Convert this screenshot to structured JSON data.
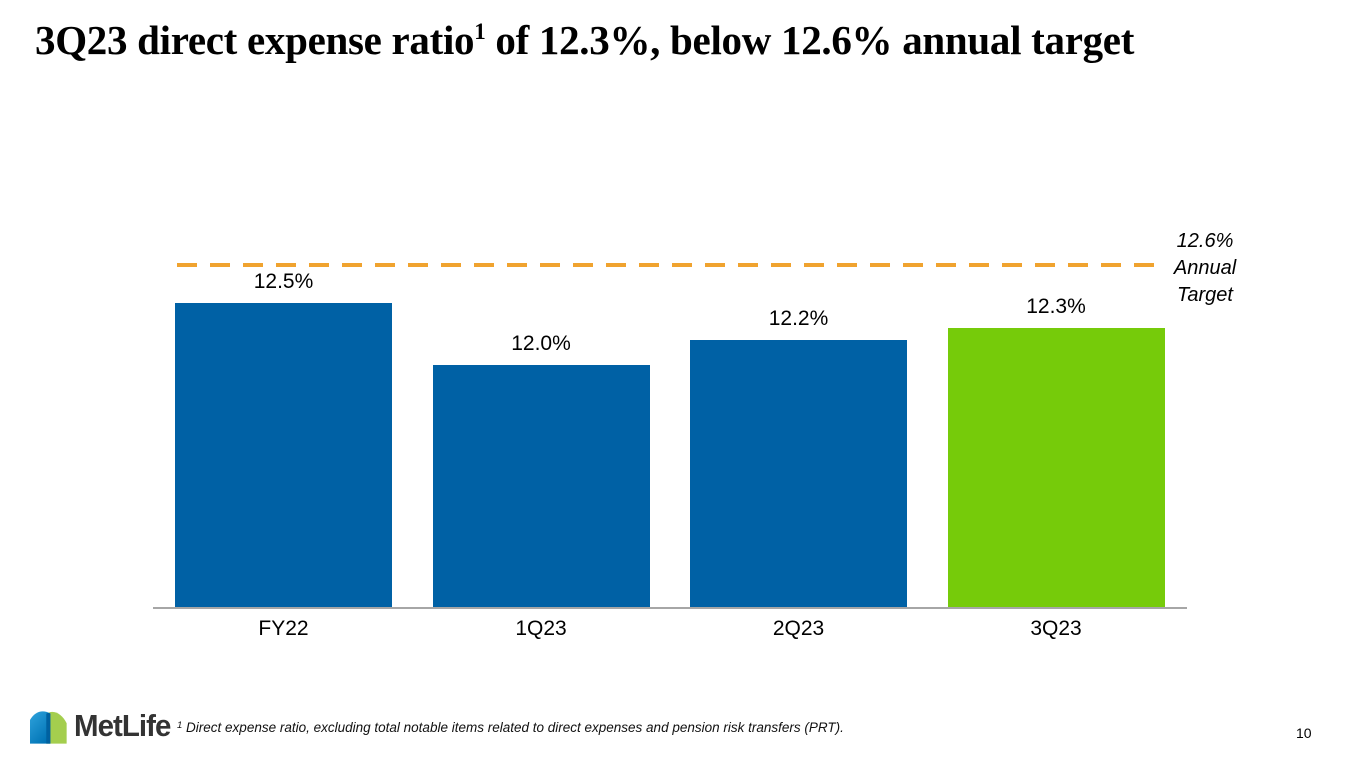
{
  "slide": {
    "title": {
      "text_before_sup": "3Q23 direct expense ratio",
      "superscript": "1",
      "text_after_sup": " of 12.3%, below 12.6% annual target"
    },
    "footnote": {
      "superscript": "1",
      "text": " Direct expense ratio, excluding total notable items related to direct expenses and pension risk transfers (PRT)."
    },
    "logo_text": "MetLife",
    "page_number": "10"
  },
  "colors": {
    "bar_blue": "#0061A5",
    "bar_green": "#76CB0A",
    "target_line_orange": "#F0A32F",
    "axis_gray": "#A6A6A6",
    "logo_light_blue": "#2FA3DC",
    "logo_dark_blue": "#0061A0",
    "logo_green": "#A4CE4E"
  },
  "chart_data": {
    "type": "bar",
    "title": "",
    "xlabel": "",
    "ylabel": "",
    "categories": [
      "FY22",
      "1Q23",
      "2Q23",
      "3Q23"
    ],
    "values": [
      12.5,
      12.0,
      12.2,
      12.3
    ],
    "value_labels": [
      "12.5%",
      "12.0%",
      "12.2%",
      "12.3%"
    ],
    "bar_colors": [
      "#0061A5",
      "#0061A5",
      "#0061A5",
      "#76CB0A"
    ],
    "target": {
      "value": 12.6,
      "label": "12.6%\nAnnual\nTarget",
      "line_style": "dashed",
      "line_color": "#F0A32F"
    },
    "ylim": [
      10.0,
      13.0
    ],
    "grid": false,
    "legend": false
  }
}
